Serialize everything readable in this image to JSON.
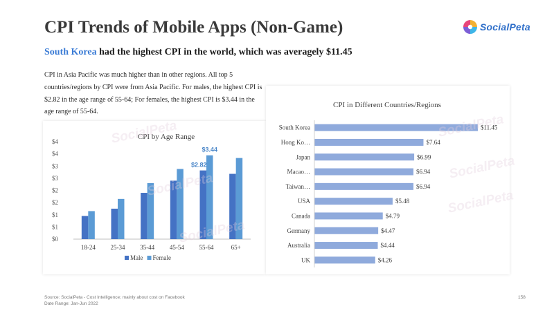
{
  "slide": {
    "title": "CPI Trends of Mobile Apps (Non-Game)",
    "logo_text": "SocialPeta",
    "subtitle_highlight": "South Korea",
    "subtitle_rest": " had the highest CPI in the world, which was averagely $11.45",
    "description": "CPI in Asia Pacific was much higher than in other regions. All top 5 countries/regions by CPI were from Asia Pacific. For males, the highest CPI is $2.82 in the age range of 55-64; For females, the highest CPI is $3.44 in the age range of 55-64.",
    "watermark": "SocialPeta",
    "footer_source": "Source: SocialPeta - Cost Intelligence; mainly about cost on Facebook",
    "footer_range": "Date Range: Jan-Jun 2022",
    "page_number": "158"
  },
  "colors": {
    "male": "#4472c4",
    "female": "#5b9bd5",
    "hbar": "#8faadc",
    "highlight": "#3a7bd5"
  },
  "chart_data": [
    {
      "type": "bar",
      "title": "CPI by Age Range",
      "categories": [
        "18-24",
        "25-34",
        "35-44",
        "45-54",
        "55-64",
        "65+"
      ],
      "series": [
        {
          "name": "Male",
          "values": [
            0.95,
            1.25,
            1.9,
            2.4,
            2.82,
            2.68
          ]
        },
        {
          "name": "Female",
          "values": [
            1.15,
            1.65,
            2.3,
            2.88,
            3.44,
            3.33
          ]
        }
      ],
      "ylim": [
        0,
        4
      ],
      "ytick_values": [
        0,
        0.5,
        1,
        1.5,
        2,
        2.5,
        3,
        3.5,
        4
      ],
      "ytick_labels": [
        "$0",
        "$1",
        "$1",
        "$2",
        "$2",
        "$3",
        "$3",
        "$4",
        "$4"
      ],
      "data_labels": [
        {
          "series": "Male",
          "category": "55-64",
          "text": "$2.82"
        },
        {
          "series": "Female",
          "category": "55-64",
          "text": "$3.44"
        }
      ],
      "legend": "bottom",
      "grid": false
    },
    {
      "type": "bar",
      "orientation": "horizontal",
      "title": "CPI in Different Countries/Regions",
      "categories": [
        "South Korea",
        "Hong Ko…",
        "Japan",
        "Macao…",
        "Taiwan…",
        "USA",
        "Canada",
        "Germany",
        "Australia",
        "UK"
      ],
      "values": [
        11.45,
        7.64,
        6.99,
        6.94,
        6.94,
        5.48,
        4.79,
        4.47,
        4.44,
        4.26
      ],
      "value_labels": [
        "$11.45",
        "$7.64",
        "$6.99",
        "$6.94",
        "$6.94",
        "$5.48",
        "$4.79",
        "$4.47",
        "$4.44",
        "$4.26"
      ],
      "xlim": [
        0,
        11.45
      ],
      "grid": false
    }
  ]
}
